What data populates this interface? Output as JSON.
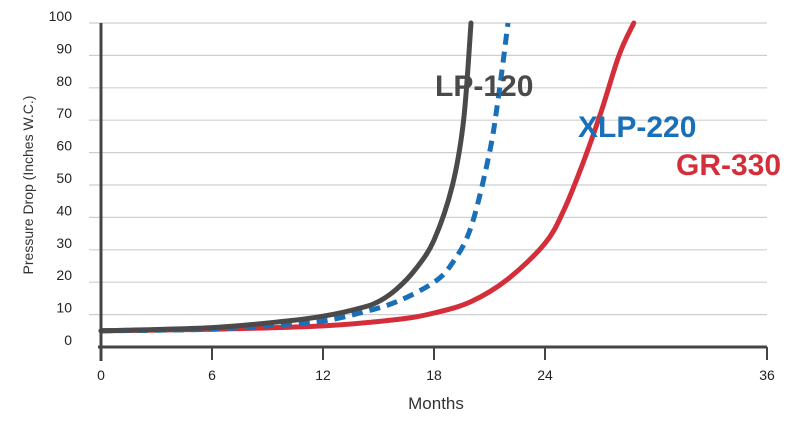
{
  "chart_data": {
    "type": "line",
    "xlabel": "Months",
    "ylabel": "Pressure Drop (Inches W.C.)",
    "xlim": [
      0,
      36
    ],
    "ylim": [
      0,
      100
    ],
    "x_ticks": [
      0,
      6,
      12,
      18,
      24,
      36
    ],
    "y_ticks": [
      0,
      10,
      20,
      30,
      40,
      50,
      60,
      70,
      80,
      90,
      100
    ],
    "x_tick_labels": [
      "0",
      "6",
      "12",
      "18",
      "24",
      "36"
    ],
    "y_tick_labels": [
      "0",
      "10",
      "20",
      "30",
      "40",
      "50",
      "60",
      "70",
      "80",
      "90",
      "100"
    ],
    "grid": "horizontal",
    "series": [
      {
        "name": "LP-120",
        "color": "#4a4a4a",
        "style": "solid",
        "x": [
          0,
          6,
          10,
          12,
          14,
          15,
          16,
          17,
          18,
          19,
          19.6,
          20
        ],
        "y": [
          5,
          6,
          8,
          9.5,
          12,
          14,
          18,
          24,
          33,
          50,
          70,
          100
        ]
      },
      {
        "name": "XLP-220",
        "color": "#1a70b8",
        "style": "dashed",
        "x": [
          0,
          6,
          10,
          12,
          14,
          16,
          18,
          19,
          20,
          21,
          21.5,
          22
        ],
        "y": [
          5,
          5.5,
          7,
          8,
          10.5,
          14,
          20,
          26,
          37,
          60,
          78,
          100
        ]
      },
      {
        "name": "GR-330",
        "color": "#d42e3a",
        "style": "solid",
        "x": [
          0,
          6,
          12,
          16,
          18,
          20,
          22,
          24,
          25,
          26,
          27,
          28,
          28.8
        ],
        "y": [
          5,
          5.5,
          6.5,
          8.5,
          10.5,
          14,
          21,
          32,
          42,
          56,
          72,
          90,
          100
        ]
      }
    ]
  }
}
